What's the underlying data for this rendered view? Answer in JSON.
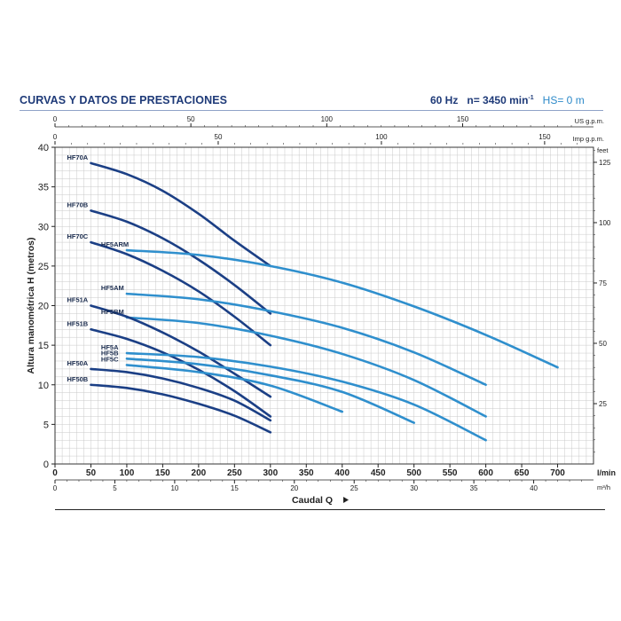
{
  "header": {
    "title": "CURVAS Y DATOS DE PRESTACIONES",
    "freq": "60 Hz",
    "speed_prefix": "n= 3450 min",
    "speed_exp": "-1",
    "hs": "HS= 0 m"
  },
  "colors": {
    "dark": "#1b3f85",
    "light": "#2f8fcd",
    "grid": "#c9c9c9",
    "text": "#1e3a78"
  },
  "chart_data": {
    "type": "line",
    "ylabel": "Altura manométrica H (metros)",
    "xlabel": "Caudal Q",
    "xlim": [
      0,
      750
    ],
    "ylim": [
      0,
      40
    ],
    "x_unit": "l/min",
    "x_ticks": [
      0,
      50,
      100,
      150,
      200,
      250,
      300,
      350,
      400,
      450,
      500,
      550,
      600,
      650,
      700
    ],
    "y_ticks": [
      0,
      5,
      10,
      15,
      20,
      25,
      30,
      35,
      40
    ],
    "axis_top_us": {
      "unit": "US g.p.m.",
      "ticks": [
        0,
        50,
        100,
        150
      ]
    },
    "axis_top_imp": {
      "unit": "Imp g.p.m.",
      "ticks": [
        0,
        50,
        100,
        150
      ]
    },
    "axis_right_feet": {
      "unit": "feet",
      "ticks": [
        25,
        50,
        75,
        100,
        125
      ]
    },
    "axis_bottom_m3h": {
      "unit": "m³/h",
      "ticks": [
        0,
        5,
        10,
        15,
        20,
        25,
        30,
        35,
        40
      ]
    },
    "grid": true,
    "series": [
      {
        "name": "HF70A",
        "shade": "dark",
        "x": [
          50,
          100,
          150,
          200,
          250,
          300
        ],
        "y": [
          38,
          36.6,
          34.5,
          31.6,
          28.2,
          25
        ]
      },
      {
        "name": "HF70B",
        "shade": "dark",
        "x": [
          50,
          100,
          150,
          200,
          250,
          300
        ],
        "y": [
          32,
          30.6,
          28.5,
          25.8,
          22.6,
          19
        ]
      },
      {
        "name": "HF70C",
        "shade": "dark",
        "x": [
          50,
          100,
          150,
          200,
          250,
          300
        ],
        "y": [
          28,
          26.5,
          24.4,
          21.8,
          18.6,
          15
        ]
      },
      {
        "name": "HF5ARM",
        "shade": "light",
        "x": [
          100,
          200,
          300,
          400,
          500,
          600,
          700
        ],
        "y": [
          27,
          26.4,
          25,
          22.9,
          19.9,
          16.3,
          12.2
        ]
      },
      {
        "name": "HF5AM",
        "shade": "light",
        "x": [
          100,
          200,
          300,
          400,
          500,
          600
        ],
        "y": [
          21.5,
          20.8,
          19.3,
          17.2,
          14.1,
          10
        ]
      },
      {
        "name": "HF5BM",
        "shade": "light",
        "x": [
          100,
          200,
          300,
          400,
          500,
          600
        ],
        "y": [
          18.5,
          17.8,
          16.2,
          13.9,
          10.6,
          6
        ]
      },
      {
        "name": "HF51A",
        "shade": "dark",
        "x": [
          50,
          100,
          150,
          200,
          250,
          300
        ],
        "y": [
          20,
          18.6,
          16.6,
          14.2,
          11.4,
          8.5
        ]
      },
      {
        "name": "HF51B",
        "shade": "dark",
        "x": [
          50,
          100,
          150,
          200,
          250,
          300
        ],
        "y": [
          17,
          15.8,
          14.1,
          11.9,
          9.2,
          6
        ]
      },
      {
        "name": "HF5A",
        "shade": "light",
        "x": [
          100,
          200,
          300,
          400,
          500,
          600
        ],
        "y": [
          14,
          13.5,
          12.3,
          10.4,
          7.5,
          3
        ]
      },
      {
        "name": "HF5B",
        "shade": "light",
        "x": [
          100,
          200,
          300,
          400,
          500
        ],
        "y": [
          13.3,
          12.6,
          11.2,
          9.1,
          5.2
        ]
      },
      {
        "name": "HF5C",
        "shade": "light",
        "x": [
          100,
          200,
          300,
          400
        ],
        "y": [
          12.5,
          11.6,
          9.9,
          6.6
        ]
      },
      {
        "name": "HF50A",
        "shade": "dark",
        "x": [
          50,
          100,
          150,
          200,
          250,
          300
        ],
        "y": [
          12,
          11.6,
          10.8,
          9.6,
          8,
          5.5
        ]
      },
      {
        "name": "HF50B",
        "shade": "dark",
        "x": [
          50,
          100,
          150,
          200,
          250,
          300
        ],
        "y": [
          10,
          9.6,
          8.8,
          7.6,
          6.1,
          4
        ]
      }
    ]
  }
}
